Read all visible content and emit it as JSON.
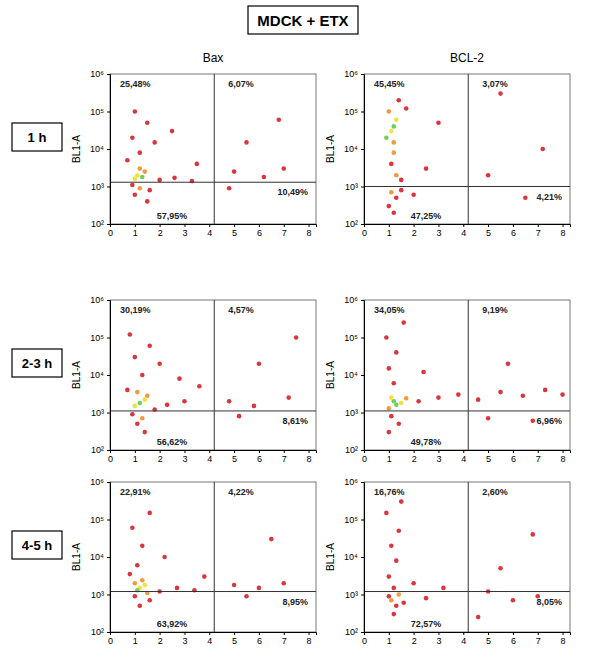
{
  "figure": {
    "title": "MDCK + ETX",
    "columns": [
      "Bax",
      "BCL-2"
    ],
    "rows": [
      "1 h",
      "2-3 h",
      "4-5 h"
    ]
  },
  "chart_data": [
    {
      "type": "scatter",
      "y_label": "BL1-A",
      "log": "y",
      "xlim": [
        0,
        8.3
      ],
      "xticks": [
        0,
        1,
        2,
        3,
        4,
        5,
        6,
        7,
        8
      ],
      "ylim": [
        100,
        1000000
      ],
      "yticks": [
        {
          "value": 100,
          "label": "10²"
        },
        {
          "value": 1000,
          "label": "10³"
        },
        {
          "value": 10000,
          "label": "10⁴"
        },
        {
          "value": 100000,
          "label": "10⁵"
        },
        {
          "value": 1000000,
          "label": "10⁶"
        }
      ],
      "gates": {
        "x": 4.2,
        "y": 1300
      },
      "quadrants": {
        "values": [
          25.48,
          6.07,
          57.95,
          10.49
        ],
        "value_labels": [
          "25,48%",
          "6,07%",
          "57,95%",
          "10,49%"
        ]
      },
      "x": [
        1.1,
        1.3,
        1.0,
        1.4,
        1.2,
        0.9,
        1.2,
        1.6,
        2.0,
        2.6,
        3.3,
        1.0,
        1.5,
        1.2,
        0.9,
        1.5,
        1.0,
        1.8,
        2.5,
        0.7,
        5.0,
        6.2,
        7.0,
        4.8,
        5.5,
        6.8,
        3.5
      ],
      "values": [
        2000,
        1800,
        1600,
        2500,
        3000,
        1100,
        900,
        800,
        1500,
        1700,
        1400,
        600,
        400,
        8000,
        20000,
        50000,
        100000,
        15000,
        30000,
        5000,
        2500,
        1800,
        3000,
        900,
        15000,
        60000,
        4000
      ],
      "colors": [
        "#f2e33a",
        "#6fcf5f",
        "#f2e33a",
        "#f39a3c",
        "#f39a3c",
        "#d9363e",
        "#f39a3c",
        "#d9363e",
        "#d9363e",
        "#d9363e",
        "#d9363e",
        "#d9363e",
        "#d9363e",
        "#d9363e",
        "#d9363e",
        "#d9363e",
        "#d9363e",
        "#d9363e",
        "#d9363e",
        "#d9363e",
        "#d9363e",
        "#d9363e",
        "#d9363e",
        "#d9363e",
        "#d9363e",
        "#d9363e",
        "#d9363e"
      ]
    },
    {
      "type": "scatter",
      "y_label": "BL1-A",
      "log": "y",
      "xlim": [
        0,
        8.3
      ],
      "xticks": [
        0,
        1,
        2,
        3,
        4,
        5,
        6,
        7,
        8
      ],
      "ylim": [
        100,
        1000000
      ],
      "yticks": [
        {
          "value": 100,
          "label": "10²"
        },
        {
          "value": 1000,
          "label": "10³"
        },
        {
          "value": 10000,
          "label": "10⁴"
        },
        {
          "value": 100000,
          "label": "10⁵"
        },
        {
          "value": 1000000,
          "label": "10⁶"
        }
      ],
      "gates": {
        "x": 4.2,
        "y": 1000
      },
      "quadrants": {
        "values": [
          45.45,
          3.07,
          47.25,
          4.21
        ],
        "value_labels": [
          "45,45%",
          "3,07%",
          "47,25%",
          "4,21%"
        ]
      },
      "x": [
        1.1,
        1.3,
        1.2,
        1.0,
        1.4,
        1.2,
        1.1,
        1.3,
        1.5,
        0.9,
        1.2,
        1.1,
        1.3,
        1.0,
        1.5,
        1.2,
        2.0,
        2.5,
        5.0,
        6.5,
        7.2,
        5.5,
        3.0,
        1.7
      ],
      "values": [
        30000,
        60000,
        15000,
        100000,
        200000,
        8000,
        4000,
        2000,
        1500,
        20000,
        40000,
        700,
        500,
        300,
        800,
        200,
        600,
        3000,
        2000,
        500,
        10000,
        300000,
        50000,
        120000
      ],
      "colors": [
        "#f2e33a",
        "#f2e33a",
        "#f39a3c",
        "#f39a3c",
        "#d9363e",
        "#f39a3c",
        "#d9363e",
        "#f39a3c",
        "#d9363e",
        "#6fcf5f",
        "#6fcf5f",
        "#f39a3c",
        "#d9363e",
        "#d9363e",
        "#d9363e",
        "#d9363e",
        "#d9363e",
        "#d9363e",
        "#d9363e",
        "#d9363e",
        "#d9363e",
        "#d9363e",
        "#d9363e",
        "#d9363e"
      ]
    },
    {
      "type": "scatter",
      "y_label": "BL1-A",
      "log": "y",
      "xlim": [
        0,
        8.3
      ],
      "xticks": [
        0,
        1,
        2,
        3,
        4,
        5,
        6,
        7,
        8
      ],
      "ylim": [
        100,
        1000000
      ],
      "yticks": [
        {
          "value": 100,
          "label": "10²"
        },
        {
          "value": 1000,
          "label": "10³"
        },
        {
          "value": 10000,
          "label": "10⁴"
        },
        {
          "value": 100000,
          "label": "10⁵"
        },
        {
          "value": 1000000,
          "label": "10⁶"
        }
      ],
      "gates": {
        "x": 4.2,
        "y": 1100
      },
      "quadrants": {
        "values": [
          30.19,
          4.57,
          56.62,
          8.61
        ],
        "value_labels": [
          "30,19%",
          "4,57%",
          "56,62%",
          "8,61%"
        ]
      },
      "x": [
        1.2,
        1.4,
        1.0,
        1.5,
        1.1,
        0.9,
        1.3,
        1.8,
        2.3,
        3.0,
        1.1,
        1.4,
        1.3,
        1.0,
        1.6,
        0.8,
        2.0,
        2.8,
        0.7,
        4.8,
        5.8,
        7.2,
        5.2,
        6.0,
        7.5,
        3.6
      ],
      "values": [
        1800,
        2200,
        1500,
        2800,
        3500,
        900,
        700,
        1200,
        1600,
        2000,
        500,
        300,
        10000,
        30000,
        60000,
        120000,
        20000,
        8000,
        4000,
        2000,
        1500,
        2500,
        800,
        20000,
        100000,
        5000
      ],
      "colors": [
        "#6fcf5f",
        "#f2e33a",
        "#f2e33a",
        "#f39a3c",
        "#f39a3c",
        "#d9363e",
        "#f39a3c",
        "#d9363e",
        "#d9363e",
        "#d9363e",
        "#d9363e",
        "#d9363e",
        "#d9363e",
        "#d9363e",
        "#d9363e",
        "#d9363e",
        "#d9363e",
        "#d9363e",
        "#d9363e",
        "#d9363e",
        "#d9363e",
        "#d9363e",
        "#d9363e",
        "#d9363e",
        "#d9363e",
        "#d9363e"
      ]
    },
    {
      "type": "scatter",
      "y_label": "BL1-A",
      "log": "y",
      "xlim": [
        0,
        8.3
      ],
      "xticks": [
        0,
        1,
        2,
        3,
        4,
        5,
        6,
        7,
        8
      ],
      "ylim": [
        100,
        1000000
      ],
      "yticks": [
        {
          "value": 100,
          "label": "10²"
        },
        {
          "value": 1000,
          "label": "10³"
        },
        {
          "value": 10000,
          "label": "10⁴"
        },
        {
          "value": 100000,
          "label": "10⁵"
        },
        {
          "value": 1000000,
          "label": "10⁶"
        }
      ],
      "gates": {
        "x": 4.2,
        "y": 1100
      },
      "quadrants": {
        "values": [
          34.05,
          9.19,
          49.78,
          6.96
        ],
        "value_labels": [
          "34,05%",
          "9,19%",
          "49,78%",
          "6,96%"
        ]
      },
      "x": [
        1.2,
        1.3,
        1.1,
        1.5,
        1.0,
        1.7,
        2.2,
        3.0,
        3.8,
        4.6,
        5.5,
        6.4,
        7.3,
        8.0,
        1.1,
        1.4,
        1.0,
        1.2,
        1.0,
        1.3,
        0.9,
        1.6,
        2.4,
        5.0,
        6.8,
        5.8
      ],
      "values": [
        2000,
        1600,
        2500,
        1800,
        1300,
        2400,
        2000,
        2500,
        3000,
        2200,
        3500,
        2800,
        4000,
        3000,
        800,
        500,
        300,
        6000,
        15000,
        40000,
        100000,
        250000,
        12000,
        700,
        600,
        20000
      ],
      "colors": [
        "#6fcf5f",
        "#6fcf5f",
        "#f2e33a",
        "#f2e33a",
        "#f39a3c",
        "#f39a3c",
        "#d9363e",
        "#d9363e",
        "#d9363e",
        "#d9363e",
        "#d9363e",
        "#d9363e",
        "#d9363e",
        "#d9363e",
        "#d9363e",
        "#d9363e",
        "#d9363e",
        "#d9363e",
        "#d9363e",
        "#d9363e",
        "#d9363e",
        "#d9363e",
        "#d9363e",
        "#d9363e",
        "#d9363e",
        "#d9363e"
      ]
    },
    {
      "type": "scatter",
      "y_label": "BL1-A",
      "log": "y",
      "xlim": [
        0,
        8.3
      ],
      "xticks": [
        0,
        1,
        2,
        3,
        4,
        5,
        6,
        7,
        8
      ],
      "ylim": [
        100,
        1000000
      ],
      "yticks": [
        {
          "value": 100,
          "label": "10²"
        },
        {
          "value": 1000,
          "label": "10³"
        },
        {
          "value": 10000,
          "label": "10⁴"
        },
        {
          "value": 100000,
          "label": "10⁵"
        },
        {
          "value": 1000000,
          "label": "10⁶"
        }
      ],
      "gates": {
        "x": 4.2,
        "y": 1200
      },
      "quadrants": {
        "values": [
          22.91,
          4.22,
          63.92,
          8.95
        ],
        "value_labels": [
          "22,91%",
          "4,22%",
          "63,92%",
          "8,95%"
        ]
      },
      "x": [
        1.2,
        1.4,
        1.1,
        1.0,
        1.5,
        1.3,
        1.0,
        1.6,
        2.0,
        2.7,
        3.4,
        1.2,
        1.1,
        1.3,
        0.9,
        1.6,
        2.2,
        5.0,
        6.0,
        7.0,
        5.5,
        6.5,
        3.8,
        0.8
      ],
      "values": [
        1500,
        1800,
        1300,
        2000,
        1100,
        2400,
        900,
        700,
        1200,
        1500,
        1300,
        500,
        6000,
        20000,
        60000,
        150000,
        10000,
        1800,
        1500,
        2000,
        900,
        30000,
        3000,
        3500
      ],
      "colors": [
        "#f2e33a",
        "#f2e33a",
        "#6fcf5f",
        "#f39a3c",
        "#f39a3c",
        "#f39a3c",
        "#d9363e",
        "#d9363e",
        "#d9363e",
        "#d9363e",
        "#d9363e",
        "#d9363e",
        "#d9363e",
        "#d9363e",
        "#d9363e",
        "#d9363e",
        "#d9363e",
        "#d9363e",
        "#d9363e",
        "#d9363e",
        "#d9363e",
        "#d9363e",
        "#d9363e",
        "#d9363e"
      ]
    },
    {
      "type": "scatter",
      "y_label": "BL1-A",
      "log": "y",
      "xlim": [
        0,
        8.3
      ],
      "xticks": [
        0,
        1,
        2,
        3,
        4,
        5,
        6,
        7,
        8
      ],
      "ylim": [
        100,
        1000000
      ],
      "yticks": [
        {
          "value": 100,
          "label": "10²"
        },
        {
          "value": 1000,
          "label": "10³"
        },
        {
          "value": 10000,
          "label": "10⁴"
        },
        {
          "value": 100000,
          "label": "10⁵"
        },
        {
          "value": 1000000,
          "label": "10⁶"
        }
      ],
      "gates": {
        "x": 4.2,
        "y": 1200
      },
      "quadrants": {
        "values": [
          16.76,
          2.6,
          72.57,
          8.05
        ],
        "value_labels": [
          "16,76%",
          "2,60%",
          "72,57%",
          "8,05%"
        ]
      },
      "x": [
        1.1,
        1.3,
        1.0,
        1.4,
        1.2,
        1.6,
        1.2,
        1.0,
        1.3,
        1.1,
        1.4,
        0.9,
        1.5,
        2.0,
        2.5,
        3.2,
        5.0,
        6.0,
        7.0,
        5.5,
        6.8,
        4.6
      ],
      "values": [
        700,
        500,
        900,
        1000,
        300,
        600,
        1500,
        3000,
        8000,
        20000,
        50000,
        150000,
        300000,
        2000,
        800,
        1500,
        1200,
        700,
        900,
        5000,
        40000,
        250
      ],
      "colors": [
        "#f39a3c",
        "#d9363e",
        "#d9363e",
        "#f39a3c",
        "#d9363e",
        "#d9363e",
        "#d9363e",
        "#d9363e",
        "#d9363e",
        "#d9363e",
        "#d9363e",
        "#d9363e",
        "#d9363e",
        "#d9363e",
        "#d9363e",
        "#d9363e",
        "#d9363e",
        "#d9363e",
        "#d9363e",
        "#d9363e",
        "#d9363e",
        "#d9363e"
      ]
    }
  ]
}
